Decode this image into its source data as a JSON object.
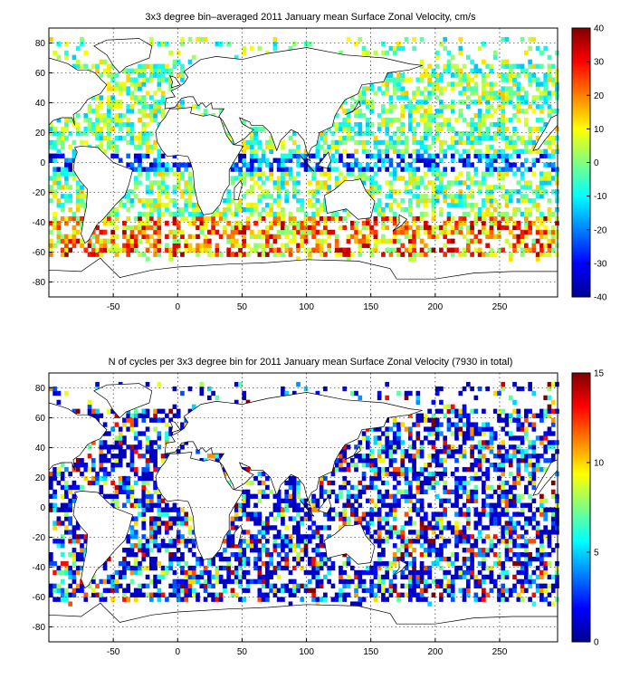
{
  "chart_data": [
    {
      "type": "heatmap",
      "title": "3x3 degree bin–averaged 2011 January mean Surface Zonal Velocity, cm/s",
      "xlim": [
        -100,
        295
      ],
      "ylim": [
        -90,
        90
      ],
      "x_ticks": [
        -50,
        0,
        50,
        100,
        150,
        200,
        250
      ],
      "y_ticks": [
        -80,
        -60,
        -40,
        -20,
        0,
        20,
        40,
        60,
        80
      ],
      "grid": true,
      "bin_size_deg": 3,
      "colorbar": {
        "min": -40,
        "max": 40,
        "ticks": [
          -40,
          -30,
          -20,
          -10,
          0,
          10,
          20,
          30,
          40
        ],
        "colormap": "jet"
      },
      "colors": {
        "low": "#00008f",
        "mid_low": "#00ffff",
        "mid": "#ffff00",
        "high": "#800000"
      },
      "pattern": "zonal velocity: strong eastward (positive, red) band near 40–60S in Southern Ocean; westward (negative, blue) near equator"
    },
    {
      "type": "heatmap",
      "title": "N of cycles per 3x3 degree bin for 2011 January mean Surface Zonal Velocity (7930 in total)",
      "xlim": [
        -100,
        295
      ],
      "ylim": [
        -90,
        90
      ],
      "x_ticks": [
        -50,
        0,
        50,
        100,
        150,
        200,
        250
      ],
      "y_ticks": [
        -80,
        -60,
        -40,
        -20,
        0,
        20,
        40,
        60,
        80
      ],
      "grid": true,
      "bin_size_deg": 3,
      "colorbar": {
        "min": 0,
        "max": 15,
        "ticks": [
          0,
          5,
          10,
          15
        ],
        "colormap": "jet"
      },
      "pattern": "mostly 1–3 cycles per bin (blue), scattered higher counts"
    }
  ]
}
